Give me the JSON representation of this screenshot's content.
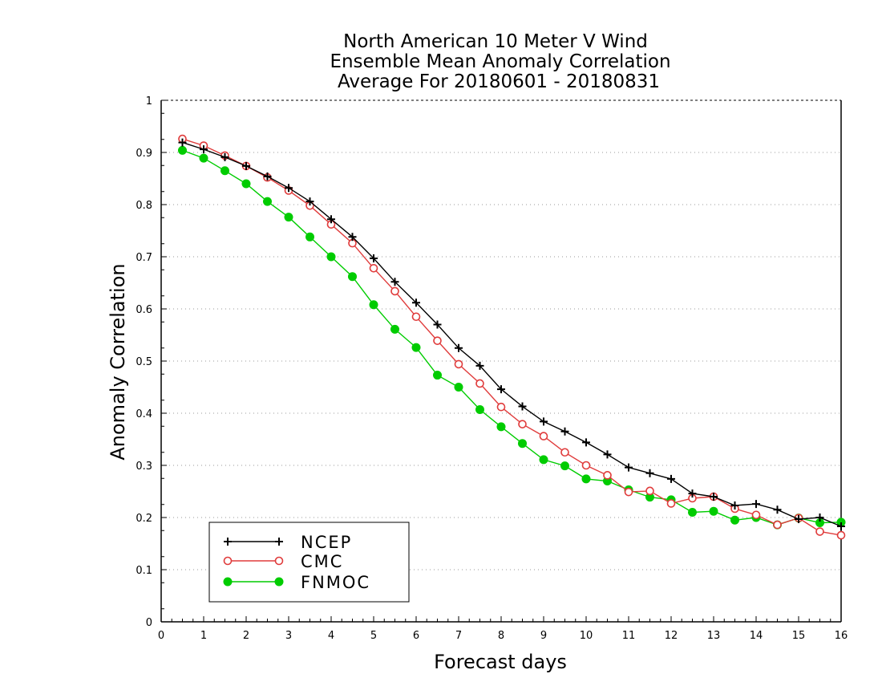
{
  "chart_data": {
    "type": "line",
    "title": [
      "North American 10 Meter V Wind",
      "Ensemble Mean Anomaly Correlation",
      "Average For 20180601 - 20180831"
    ],
    "xlabel": "Forecast days",
    "ylabel": "Anomaly Correlation",
    "xlim": [
      0,
      16
    ],
    "ylim": [
      0,
      1
    ],
    "x_ticks": [
      "0",
      "1",
      "2",
      "3",
      "4",
      "5",
      "6",
      "7",
      "8",
      "9",
      "10",
      "11",
      "12",
      "13",
      "14",
      "15",
      "16"
    ],
    "y_ticks": [
      "0",
      "0.1",
      "0.2",
      "0.3",
      "0.4",
      "0.5",
      "0.6",
      "0.7",
      "0.8",
      "0.9",
      "1"
    ],
    "grid": true,
    "legend_position": "bottom-left",
    "x": [
      0.5,
      1,
      1.5,
      2,
      2.5,
      3,
      3.5,
      4,
      4.5,
      5,
      5.5,
      6,
      6.5,
      7,
      7.5,
      8,
      8.5,
      9,
      9.5,
      10,
      10.5,
      11,
      11.5,
      12,
      12.5,
      13,
      13.5,
      14,
      14.5,
      15,
      15.5,
      16
    ],
    "series": [
      {
        "name": "NCEP",
        "color": "#000000",
        "marker": "plus",
        "values": [
          0.919,
          0.906,
          0.891,
          0.874,
          0.854,
          0.832,
          0.806,
          0.772,
          0.738,
          0.697,
          0.652,
          0.612,
          0.57,
          0.525,
          0.491,
          0.446,
          0.413,
          0.384,
          0.365,
          0.344,
          0.321,
          0.296,
          0.285,
          0.274,
          0.246,
          0.24,
          0.223,
          0.226,
          0.215,
          0.197,
          0.2,
          0.183
        ]
      },
      {
        "name": "CMC",
        "color": "#e03c3c",
        "marker": "open-circle",
        "values": [
          0.926,
          0.913,
          0.894,
          0.874,
          0.852,
          0.827,
          0.798,
          0.762,
          0.726,
          0.678,
          0.634,
          0.585,
          0.539,
          0.494,
          0.457,
          0.412,
          0.379,
          0.356,
          0.325,
          0.3,
          0.281,
          0.249,
          0.251,
          0.227,
          0.237,
          0.24,
          0.217,
          0.205,
          0.186,
          0.199,
          0.173,
          0.166
        ]
      },
      {
        "name": "FNMOC",
        "color": "#00cc00",
        "marker": "filled-circle",
        "values": [
          0.904,
          0.889,
          0.865,
          0.84,
          0.806,
          0.776,
          0.738,
          0.7,
          0.662,
          0.608,
          0.561,
          0.526,
          0.473,
          0.45,
          0.407,
          0.374,
          0.342,
          0.311,
          0.299,
          0.274,
          0.27,
          0.253,
          0.239,
          0.234,
          0.21,
          0.212,
          0.195,
          0.2,
          0.186,
          0.199,
          0.19,
          0.191
        ]
      }
    ]
  }
}
